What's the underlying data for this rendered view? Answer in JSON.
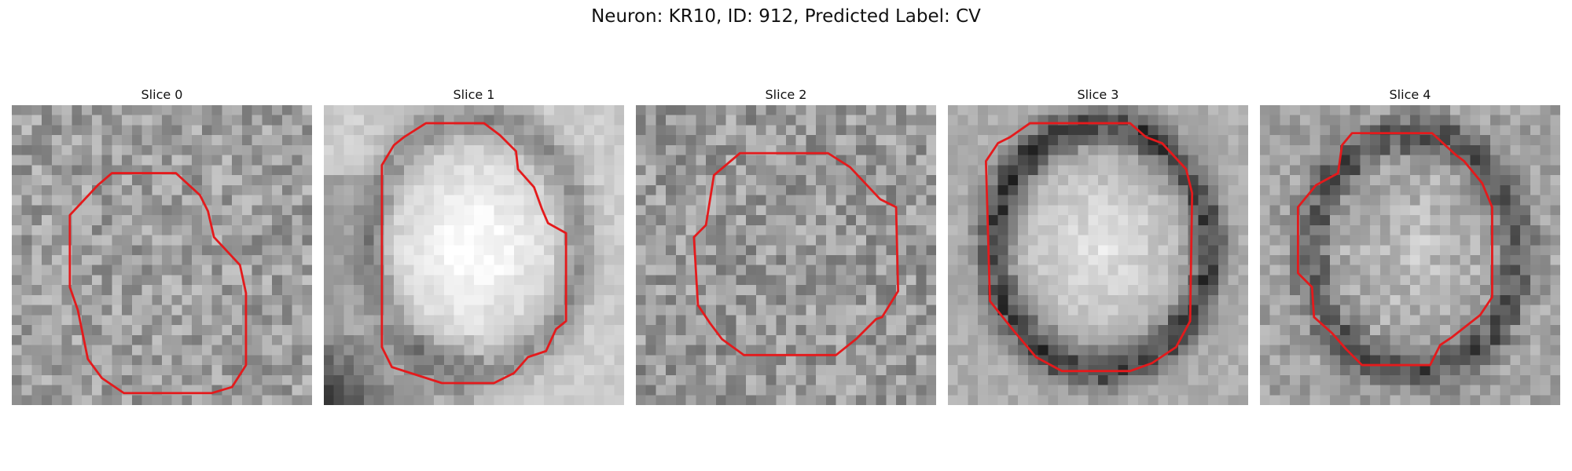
{
  "figure": {
    "title": "Neuron: KR10, ID: 912, Predicted Label: CV",
    "contour_color": "#e41a1c",
    "grid_size": 30,
    "slices": [
      {
        "label": "Slice 0",
        "id": 0
      },
      {
        "label": "Slice 1",
        "id": 1
      },
      {
        "label": "Slice 2",
        "id": 2
      },
      {
        "label": "Slice 3",
        "id": 3
      },
      {
        "label": "Slice 4",
        "id": 4
      }
    ]
  }
}
